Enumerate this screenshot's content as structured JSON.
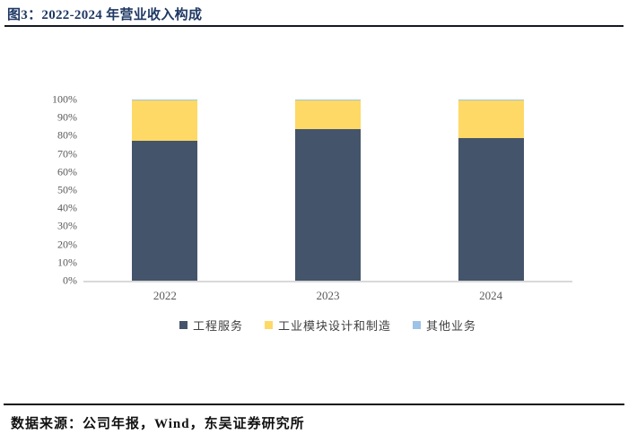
{
  "header": {
    "title": "图3：2022-2024 年营业收入构成"
  },
  "footer": {
    "source": "数据来源：公司年报，Wind，东吴证券研究所"
  },
  "colors": {
    "title_navy": "#1f3864",
    "series_navy": "#44546A",
    "series_yellow": "#FFD966",
    "series_lightblue": "#9DC3E6",
    "axis_text_gray": "#595959",
    "axis_line_gray": "#D9D9D9",
    "rule_black": "#0f0f0f"
  },
  "chart_data": {
    "type": "bar",
    "stacked": true,
    "title": "",
    "xlabel": "",
    "ylabel": "",
    "categories": [
      "2022",
      "2023",
      "2024"
    ],
    "series": [
      {
        "name": "工程服务",
        "color": "#44546A",
        "values": [
          77.2,
          83.7,
          78.7
        ]
      },
      {
        "name": "工业模块设计和制造",
        "color": "#FFD966",
        "values": [
          22.2,
          16.0,
          20.9
        ]
      },
      {
        "name": "其他业务",
        "color": "#9DC3E6",
        "values": [
          0.6,
          0.3,
          0.4
        ]
      }
    ],
    "unit": "%",
    "ylim": [
      0,
      100
    ],
    "y_tick_labels": [
      "100%",
      "90%",
      "80%",
      "70%",
      "60%",
      "50%",
      "40%",
      "30%",
      "20%",
      "10%",
      "0%"
    ],
    "grid": false,
    "legend_position": "bottom"
  }
}
